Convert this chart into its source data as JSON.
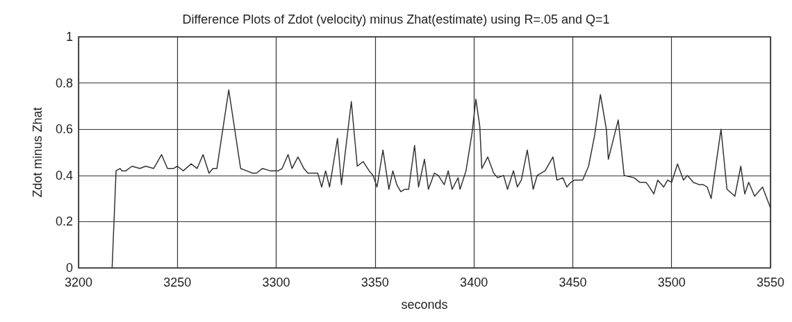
{
  "chart_data": {
    "type": "line",
    "title": "Difference Plots of Zdot (velocity) minus Zhat(estimate) using R=.05 and Q=1",
    "xlabel": "seconds",
    "ylabel": "Zdot minus Zhat",
    "x": [
      3217,
      3219,
      3221,
      3222,
      3224,
      3227,
      3231,
      3234,
      3238,
      3242,
      3245,
      3248,
      3250,
      3253,
      3257,
      3260,
      3263,
      3266,
      3268,
      3270,
      3273,
      3276,
      3279,
      3282,
      3285,
      3288,
      3290,
      3293,
      3297,
      3301,
      3303,
      3306,
      3308,
      3311,
      3314,
      3316,
      3321,
      3323,
      3325,
      3327,
      3331,
      3333,
      3338,
      3341,
      3344,
      3347,
      3349,
      3351,
      3354,
      3357,
      3359,
      3361,
      3363,
      3365,
      3367,
      3370,
      3372,
      3375,
      3377,
      3380,
      3382,
      3385,
      3387,
      3389,
      3392,
      3393,
      3396,
      3399,
      3401,
      3403,
      3404,
      3407,
      3410,
      3412,
      3415,
      3417,
      3420,
      3422,
      3424,
      3427,
      3430,
      3432,
      3436,
      3440,
      3442,
      3445,
      3447,
      3449,
      3451,
      3455,
      3458,
      3461,
      3464,
      3467,
      3468,
      3473,
      3476,
      3481,
      3484,
      3487,
      3488,
      3491,
      3493,
      3496,
      3498,
      3500,
      3503,
      3506,
      3508,
      3511,
      3514,
      3516,
      3518,
      3520,
      3525,
      3528,
      3532,
      3535,
      3537,
      3539,
      3542,
      3546,
      3550
    ],
    "series": [
      {
        "color": "#333333",
        "values": [
          0,
          0.42,
          0.43,
          0.42,
          0.42,
          0.44,
          0.43,
          0.44,
          0.43,
          0.49,
          0.43,
          0.43,
          0.44,
          0.42,
          0.45,
          0.43,
          0.49,
          0.41,
          0.43,
          0.43,
          0.6,
          0.77,
          0.6,
          0.43,
          0.42,
          0.41,
          0.41,
          0.43,
          0.42,
          0.42,
          0.43,
          0.49,
          0.43,
          0.48,
          0.43,
          0.41,
          0.41,
          0.35,
          0.42,
          0.35,
          0.56,
          0.36,
          0.72,
          0.44,
          0.46,
          0.42,
          0.4,
          0.35,
          0.51,
          0.34,
          0.42,
          0.36,
          0.33,
          0.34,
          0.34,
          0.53,
          0.35,
          0.47,
          0.34,
          0.41,
          0.4,
          0.36,
          0.42,
          0.34,
          0.39,
          0.34,
          0.42,
          0.58,
          0.73,
          0.61,
          0.43,
          0.48,
          0.41,
          0.39,
          0.4,
          0.34,
          0.42,
          0.35,
          0.38,
          0.51,
          0.34,
          0.4,
          0.42,
          0.48,
          0.38,
          0.39,
          0.35,
          0.37,
          0.38,
          0.38,
          0.44,
          0.57,
          0.75,
          0.6,
          0.47,
          0.64,
          0.4,
          0.39,
          0.37,
          0.37,
          0.36,
          0.32,
          0.38,
          0.35,
          0.38,
          0.37,
          0.45,
          0.38,
          0.4,
          0.37,
          0.36,
          0.36,
          0.35,
          0.3,
          0.6,
          0.34,
          0.31,
          0.44,
          0.32,
          0.37,
          0.31,
          0.35,
          0.26
        ]
      }
    ],
    "xlim": [
      3200,
      3550
    ],
    "xticks": [
      3200,
      3250,
      3300,
      3350,
      3400,
      3450,
      3500,
      3550
    ],
    "ylim": [
      0,
      1
    ],
    "yticks": [
      0,
      0.2,
      0.4,
      0.6,
      0.8,
      1
    ],
    "grid": true,
    "marker": "none",
    "line_style": "solid"
  }
}
